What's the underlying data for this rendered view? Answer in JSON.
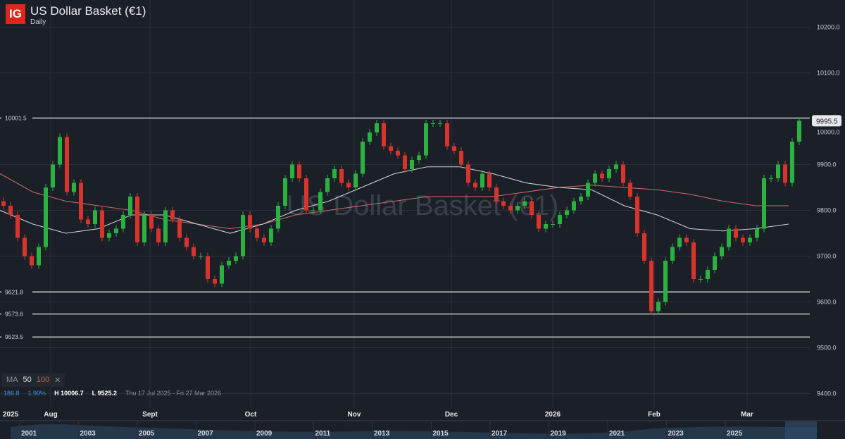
{
  "header": {
    "logo": "IG",
    "title": "US Dollar Basket (€1)",
    "interval": "Daily"
  },
  "indicators": {
    "label": "MA",
    "periods": [
      "50",
      "100"
    ],
    "close_icon": "close-icon"
  },
  "stats": {
    "change": "186.8",
    "change_pct": "1.90%",
    "high": "H 10006.7",
    "low": "L 9525.2",
    "range": "Thu 17 Jul 2025 - Fri 27 Mar 2026"
  },
  "colors": {
    "background": "#1b2028",
    "up": "#2bb13f",
    "down": "#d9342b",
    "ma50": "#d0d3d8",
    "ma100": "#c96a6a"
  },
  "navigator": {
    "years": [
      "2001",
      "2003",
      "2005",
      "2007",
      "2009",
      "2011",
      "2013",
      "2015",
      "2017",
      "2019",
      "2021",
      "2023",
      "2025"
    ]
  },
  "chart_data": {
    "type": "candlestick",
    "title": "US Dollar Basket (€1)",
    "ylim": [
      9360,
      10260
    ],
    "y_ticks": [
      "10200.0",
      "10100.0",
      "10000.0",
      "9900.0",
      "9800.0",
      "9700.0",
      "9600.0",
      "9500.0",
      "9400.0"
    ],
    "y_tick_values": [
      10200,
      10100,
      10000,
      9900,
      9800,
      9700,
      9600,
      9500,
      9400
    ],
    "x_ticks": [
      "2025",
      "Aug",
      "Sept",
      "Oct",
      "Nov",
      "Dec",
      "2026",
      "Feb",
      "Mar"
    ],
    "grid": true,
    "closes": [
      9810,
      9790,
      9740,
      9700,
      9680,
      9720,
      9850,
      9900,
      9960,
      9840,
      9860,
      9780,
      9770,
      9800,
      9740,
      9750,
      9760,
      9790,
      9830,
      9730,
      9790,
      9760,
      9730,
      9800,
      9780,
      9740,
      9720,
      9700,
      9700,
      9650,
      9640,
      9680,
      9690,
      9700,
      9790,
      9760,
      9740,
      9730,
      9760,
      9810,
      9870,
      9900,
      9870,
      9800,
      9800,
      9840,
      9870,
      9890,
      9860,
      9850,
      9880,
      9950,
      9970,
      9990,
      9940,
      9930,
      9920,
      9890,
      9910,
      9920,
      9990,
      9990,
      9990,
      9940,
      9930,
      9900,
      9860,
      9850,
      9880,
      9850,
      9820,
      9810,
      9800,
      9810,
      9820,
      9790,
      9760,
      9770,
      9770,
      9790,
      9800,
      9820,
      9830,
      9860,
      9880,
      9870,
      9890,
      9900,
      9860,
      9830,
      9750,
      9690,
      9580,
      9600,
      9690,
      9720,
      9740,
      9730,
      9650,
      9650,
      9670,
      9700,
      9720,
      9760,
      9740,
      9730,
      9740,
      9760,
      9870,
      9870,
      9900,
      9860,
      9950,
      9995.5
    ],
    "ma50": [
      9800,
      9770,
      9750,
      9760,
      9790,
      9790,
      9770,
      9750,
      9770,
      9800,
      9820,
      9850,
      9880,
      9895,
      9895,
      9880,
      9860,
      9850,
      9845,
      9810,
      9790,
      9760,
      9755,
      9760,
      9770
    ],
    "ma100": [
      9880,
      9840,
      9820,
      9810,
      9800,
      9780,
      9770,
      9760,
      9770,
      9790,
      9800,
      9810,
      9820,
      9830,
      9830,
      9830,
      9840,
      9850,
      9855,
      9850,
      9845,
      9835,
      9820,
      9810,
      9810
    ],
    "levels": [
      {
        "value": 10001.5,
        "label": "10001.5"
      },
      {
        "value": 9621.8,
        "label": "9621.8"
      },
      {
        "value": 9573.6,
        "label": "9573.6"
      },
      {
        "value": 9523.5,
        "label": "9523.5"
      }
    ],
    "last_price": "9995.5",
    "legend": [
      "MA 50",
      "MA 100"
    ]
  }
}
